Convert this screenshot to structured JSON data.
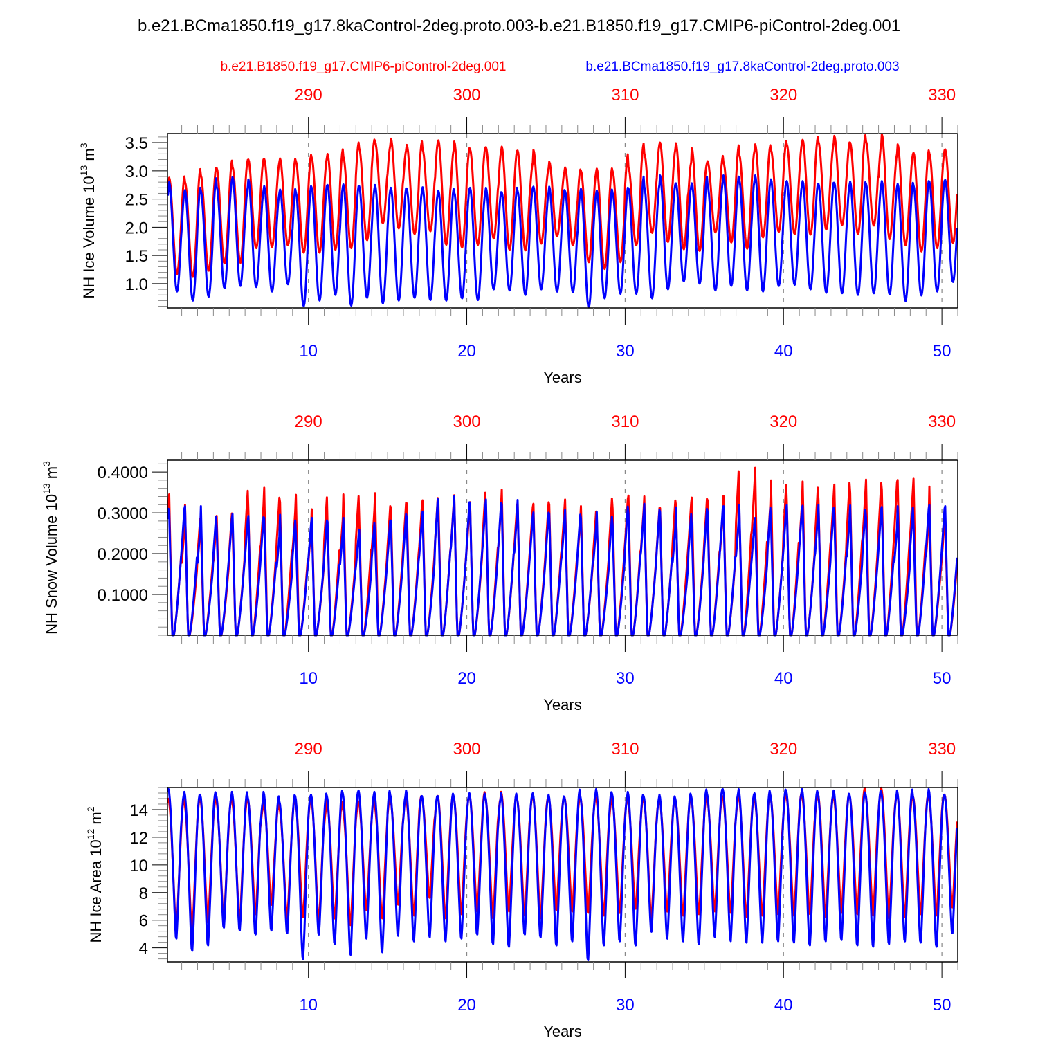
{
  "title": "b.e21.BCma1850.f19_g17.8kaControl-2deg.proto.003-b.e21.B1850.f19_g17.CMIP6-piControl-2deg.001",
  "legend": [
    {
      "name": "b.e21.B1850.f19_g17.CMIP6-piControl-2deg.001",
      "color": "#ff0000",
      "placement": "top-left"
    },
    {
      "name": "b.e21.BCma1850.f19_g17.8kaControl-2deg.proto.003",
      "color": "#0000ff",
      "placement": "top-right"
    }
  ],
  "chart_data": [
    {
      "type": "line",
      "ylabel": "NH Ice Volume 10^13 m^3",
      "ylabel_main": "NH Ice Volume 10",
      "ylabel_exp": "13",
      "ylabel_unit": " m",
      "ylabel_unit_exp": "3",
      "xlabel": "Years",
      "xlim": [
        1.1,
        51.0
      ],
      "ylim": [
        0.57,
        3.66
      ],
      "yticks": [
        1.0,
        1.5,
        2.0,
        2.5,
        3.0,
        3.5
      ],
      "ytick_labels": [
        "1.0",
        "1.5",
        "2.0",
        "2.5",
        "3.0",
        "3.5"
      ],
      "xticks_bottom": [
        10,
        20,
        30,
        40,
        50
      ],
      "xticks_top_labels": [
        "290",
        "300",
        "310",
        "320",
        "330"
      ],
      "top_axis_offset": 280,
      "grid": "dashed vertical at decades",
      "series": [
        {
          "name": "b.e21.B1850.f19_g17.CMIP6-piControl-2deg.001",
          "color": "#ff0000",
          "annual_max": [
            2.88,
            2.8,
            2.92,
            3.05,
            3.07,
            3.2,
            3.21,
            3.22,
            3.17,
            3.23,
            3.3,
            3.25,
            3.4,
            3.52,
            3.57,
            3.46,
            3.38,
            3.54,
            3.52,
            3.38,
            3.42,
            3.43,
            3.36,
            3.37,
            3.16,
            3.06,
            3.0,
            3.04,
            2.99,
            3.06,
            3.31,
            3.5,
            3.49,
            3.4,
            3.17,
            3.15,
            3.28,
            3.47,
            3.37,
            3.47,
            3.55,
            3.51,
            3.62,
            3.5,
            3.52,
            3.65,
            3.47,
            3.32,
            3.31,
            3.38
          ],
          "annual_min": [
            1.17,
            1.12,
            1.23,
            1.36,
            1.37,
            1.63,
            1.65,
            1.68,
            1.55,
            1.55,
            1.6,
            1.63,
            1.77,
            2.07,
            1.98,
            1.88,
            1.93,
            1.69,
            1.64,
            1.69,
            1.8,
            1.6,
            1.59,
            1.71,
            1.84,
            1.68,
            1.38,
            1.26,
            1.38,
            1.68,
            1.9,
            1.74,
            1.61,
            1.58,
            1.91,
            1.73,
            1.62,
            1.82,
            1.92,
            1.88,
            1.87,
            1.96,
            2.04,
            1.88,
            2.03,
            1.79,
            1.68,
            1.57,
            1.63,
            1.72
          ]
        },
        {
          "name": "b.e21.BCma1850.f19_g17.8kaControl-2deg.proto.003",
          "color": "#0000ff",
          "annual_max": [
            2.8,
            2.66,
            2.64,
            2.72,
            2.89,
            2.85,
            2.73,
            2.67,
            2.62,
            2.7,
            2.75,
            2.76,
            2.73,
            2.75,
            2.7,
            2.68,
            2.71,
            2.65,
            2.62,
            2.7,
            2.7,
            2.62,
            2.64,
            2.72,
            2.72,
            2.64,
            2.68,
            2.65,
            2.61,
            2.69,
            2.72,
            2.92,
            2.78,
            2.78,
            2.74,
            2.92,
            2.83,
            2.92,
            2.85,
            2.82,
            2.82,
            2.77,
            2.79,
            2.81,
            2.77,
            2.82,
            2.77,
            2.74,
            2.81,
            2.84
          ],
          "annual_min": [
            0.86,
            0.7,
            0.77,
            0.92,
            0.96,
            0.94,
            0.86,
            0.99,
            0.6,
            0.7,
            0.8,
            0.61,
            0.75,
            0.65,
            0.7,
            0.75,
            0.71,
            0.7,
            0.74,
            0.71,
            0.9,
            0.88,
            0.8,
            0.9,
            0.86,
            0.85,
            0.58,
            0.74,
            0.82,
            0.82,
            0.74,
            0.9,
            1.04,
            1.0,
            0.88,
            0.96,
            0.88,
            0.86,
            0.96,
            0.98,
            0.9,
            0.84,
            0.83,
            0.8,
            0.83,
            0.81,
            0.69,
            0.79,
            0.86,
            1.03
          ]
        }
      ]
    },
    {
      "type": "line",
      "ylabel": "NH Snow Volume 10^13 m^3",
      "ylabel_main": "NH Snow Volume 10",
      "ylabel_exp": "13",
      "ylabel_unit": " m",
      "ylabel_unit_exp": "3",
      "xlabel": "Years",
      "xlim": [
        1.1,
        51.0
      ],
      "ylim": [
        0.0,
        0.429
      ],
      "yticks": [
        0.1,
        0.2,
        0.3,
        0.4
      ],
      "ytick_labels": [
        "0.1000",
        "0.2000",
        "0.3000",
        "0.4000"
      ],
      "xticks_bottom": [
        10,
        20,
        30,
        40,
        50
      ],
      "xticks_top_labels": [
        "290",
        "300",
        "310",
        "320",
        "330"
      ],
      "top_axis_offset": 280,
      "grid": "dashed vertical at decades",
      "series": [
        {
          "name": "b.e21.B1850.f19_g17.CMIP6-piControl-2deg.001",
          "color": "#ff0000",
          "annual_max": [
            0.36,
            0.333,
            0.275,
            0.305,
            0.282,
            0.318,
            0.377,
            0.34,
            0.359,
            0.322,
            0.28,
            0.36,
            0.3,
            0.363,
            0.326,
            0.337,
            0.345,
            0.337,
            0.358,
            0.34,
            0.33,
            0.372,
            0.338,
            0.336,
            0.334,
            0.347,
            0.33,
            0.302,
            0.323,
            0.357,
            0.355,
            0.325,
            0.332,
            0.352,
            0.345,
            0.356,
            0.322,
            0.428,
            0.396,
            0.341,
            0.393,
            0.344,
            0.385,
            0.364,
            0.398,
            0.372,
            0.397,
            0.4,
            0.38,
            0.3
          ],
          "annual_min": [
            0.0,
            0.0,
            0.0,
            0.0,
            0.0,
            0.0,
            0.0,
            0.0,
            0.0,
            0.0,
            0.0,
            0.0,
            0.0,
            0.0,
            0.0,
            0.0,
            0.0,
            0.0,
            0.0,
            0.0,
            0.0,
            0.0,
            0.0,
            0.0,
            0.0,
            0.0,
            0.0,
            0.0,
            0.0,
            0.0,
            0.0,
            0.0,
            0.0,
            0.0,
            0.0,
            0.0,
            0.0,
            0.0,
            0.0,
            0.0,
            0.0,
            0.0,
            0.0,
            0.0,
            0.0,
            0.0,
            0.0,
            0.0,
            0.0,
            0.0
          ]
        },
        {
          "name": "b.e21.BCma1850.f19_g17.8kaControl-2deg.proto.003",
          "color": "#0000ff",
          "annual_max": [
            0.32,
            0.33,
            0.33,
            0.275,
            0.31,
            0.305,
            0.3,
            0.308,
            0.258,
            0.3,
            0.29,
            0.3,
            0.27,
            0.26,
            0.293,
            0.3,
            0.316,
            0.303,
            0.355,
            0.335,
            0.347,
            0.335,
            0.346,
            0.314,
            0.311,
            0.32,
            0.299,
            0.315,
            0.282,
            0.31,
            0.336,
            0.315,
            0.327,
            0.278,
            0.316,
            0.33,
            0.333,
            0.3,
            0.296,
            0.333,
            0.331,
            0.333,
            0.312,
            0.332,
            0.3,
            0.328,
            0.33,
            0.28,
            0.333,
            0.33
          ],
          "annual_min": [
            0.0,
            0.0,
            0.0,
            0.0,
            0.0,
            0.0,
            0.0,
            0.0,
            0.0,
            0.0,
            0.0,
            0.0,
            0.0,
            0.0,
            0.0,
            0.0,
            0.0,
            0.0,
            0.0,
            0.0,
            0.0,
            0.0,
            0.0,
            0.0,
            0.0,
            0.0,
            0.0,
            0.0,
            0.0,
            0.0,
            0.0,
            0.0,
            0.0,
            0.0,
            0.0,
            0.0,
            0.0,
            0.0,
            0.0,
            0.0,
            0.0,
            0.0,
            0.0,
            0.0,
            0.0,
            0.0,
            0.0,
            0.0,
            0.0,
            0.0
          ]
        }
      ]
    },
    {
      "type": "line",
      "ylabel": "NH Ice Area 10^12 m^2",
      "ylabel_main": "NH Ice Area 10",
      "ylabel_exp": "12",
      "ylabel_unit": " m",
      "ylabel_unit_exp": "2",
      "xlabel": "Years",
      "xlim": [
        1.1,
        51.0
      ],
      "ylim": [
        2.98,
        15.6
      ],
      "yticks": [
        4,
        6,
        8,
        10,
        12,
        14
      ],
      "ytick_labels": [
        "4",
        "6",
        "8",
        "10",
        "12",
        "14"
      ],
      "xticks_bottom": [
        10,
        20,
        30,
        40,
        50
      ],
      "xticks_top_labels": [
        "290",
        "300",
        "310",
        "320",
        "330"
      ],
      "top_axis_offset": 280,
      "grid": "dashed vertical at decades",
      "series": [
        {
          "name": "b.e21.B1850.f19_g17.CMIP6-piControl-2deg.001",
          "color": "#ff0000",
          "annual_max": [
            14.8,
            14.5,
            14.8,
            14.8,
            14.7,
            14.8,
            14.7,
            14.1,
            14.6,
            14.8,
            14.7,
            14.1,
            14.6,
            14.4,
            14.8,
            14.8,
            14.8,
            15.0,
            14.9,
            15.1,
            14.9,
            15.3,
            14.8,
            15.1,
            14.9,
            14.9,
            14.9,
            14.8,
            14.9,
            14.6,
            14.8,
            14.8,
            14.7,
            14.8,
            14.9,
            14.9,
            15.0,
            14.8,
            15.0,
            15.1,
            15.0,
            15.2,
            14.9,
            15.0,
            15.1,
            15.6,
            15.2,
            15.0,
            14.9,
            15.1
          ],
          "annual_min": [
            5.2,
            5.0,
            5.7,
            5.9,
            5.8,
            6.3,
            7.0,
            6.0,
            6.1,
            5.8,
            6.0,
            5.5,
            6.6,
            6.0,
            7.0,
            6.2,
            7.5,
            6.0,
            6.3,
            6.5,
            6.0,
            6.5,
            6.2,
            6.0,
            6.6,
            6.5,
            6.4,
            6.2,
            6.4,
            6.7,
            6.0,
            6.5,
            6.2,
            6.3,
            6.5,
            6.4,
            6.1,
            6.2,
            6.3,
            6.2,
            6.3,
            6.1,
            6.4,
            6.3,
            6.2,
            6.0,
            6.1,
            6.3,
            6.2,
            6.8
          ]
        },
        {
          "name": "b.e21.BCma1850.f19_g17.8kaControl-2deg.proto.003",
          "color": "#0000ff",
          "annual_max": [
            15.5,
            15.3,
            15.1,
            15.1,
            15.3,
            14.9,
            15.3,
            14.6,
            15.0,
            15.1,
            15.0,
            15.2,
            15.4,
            15.3,
            15.1,
            15.4,
            15.0,
            15.0,
            15.0,
            15.2,
            15.0,
            15.2,
            14.8,
            15.2,
            15.1,
            14.9,
            15.0,
            15.5,
            15.2,
            15.3,
            15.0,
            15.1,
            14.8,
            15.0,
            15.2,
            15.5,
            15.5,
            15.2,
            15.1,
            15.4,
            15.5,
            15.2,
            15.4,
            15.1,
            15.2,
            15.3,
            15.4,
            15.0,
            15.5,
            15.1
          ],
          "annual_min": [
            4.5,
            3.6,
            4.0,
            5.3,
            5.1,
            4.8,
            5.1,
            4.9,
            3.0,
            4.8,
            4.1,
            3.3,
            4.5,
            3.5,
            4.7,
            4.3,
            4.6,
            4.3,
            4.5,
            4.8,
            4.1,
            3.9,
            4.8,
            4.6,
            4.0,
            4.3,
            2.9,
            4.0,
            4.3,
            4.0,
            5.0,
            4.5,
            4.3,
            4.1,
            4.6,
            4.3,
            4.2,
            4.2,
            4.3,
            4.2,
            4.0,
            4.3,
            4.4,
            4.0,
            3.9,
            4.1,
            4.3,
            4.2,
            3.9,
            4.9
          ]
        }
      ]
    }
  ],
  "panels_xlabel": "Years"
}
